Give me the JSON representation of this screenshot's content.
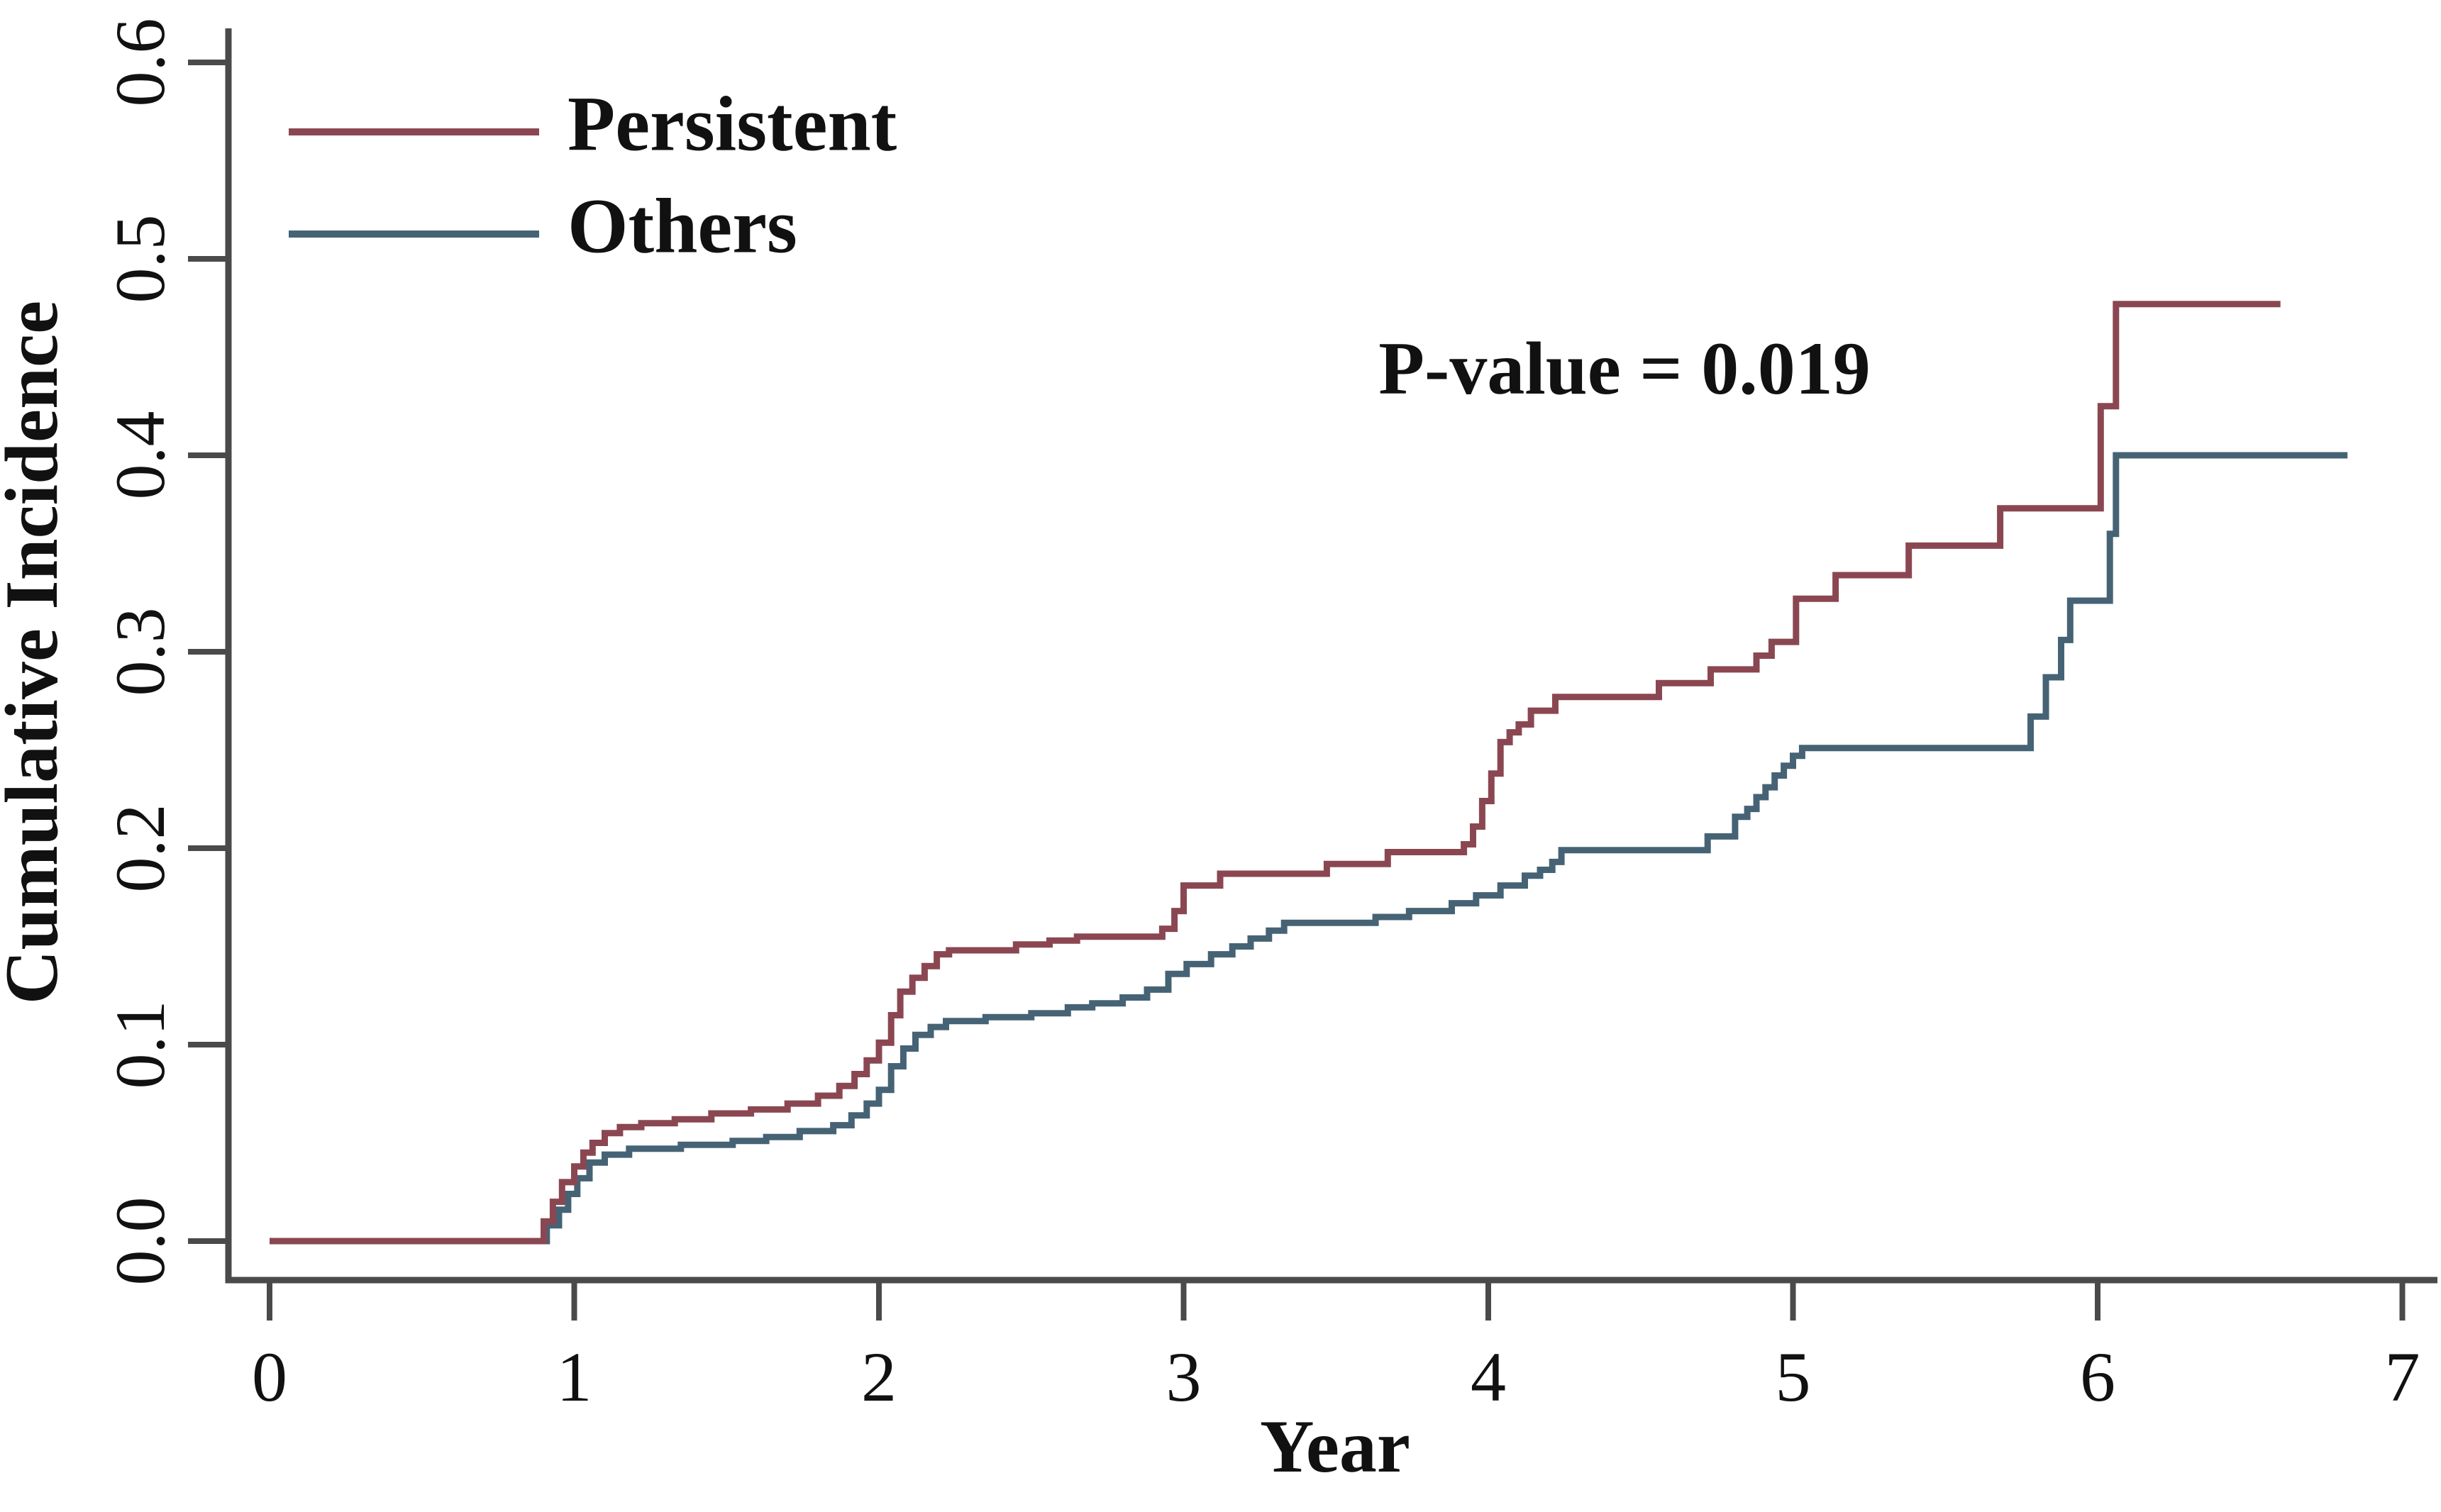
{
  "chart_data": {
    "type": "line",
    "subtype": "step-function cumulative incidence (Kaplan-Meier style)",
    "title": "",
    "xlabel": "Year",
    "ylabel": "Cumulative Incidence",
    "xlim": [
      0,
      7
    ],
    "ylim": [
      0.0,
      0.6
    ],
    "xticks": [
      "0",
      "1",
      "2",
      "3",
      "4",
      "5",
      "6",
      "7"
    ],
    "yticks": [
      "0.0",
      "0.1",
      "0.2",
      "0.3",
      "0.4",
      "0.5",
      "0.6"
    ],
    "grid": false,
    "legend_position": "top-left",
    "annotation": {
      "text": "P-value = 0.019",
      "x": 5.35,
      "y": 0.445
    },
    "axis_color": "#4a4a4a",
    "text_color": "#111111",
    "series": [
      {
        "name": "Others",
        "color": "#466375",
        "end_x": 6.82,
        "steps": [
          [
            0.0,
            0.0
          ],
          [
            0.91,
            0.008
          ],
          [
            0.95,
            0.016
          ],
          [
            0.98,
            0.024
          ],
          [
            1.01,
            0.032
          ],
          [
            1.05,
            0.04
          ],
          [
            1.1,
            0.044
          ],
          [
            1.18,
            0.047
          ],
          [
            1.35,
            0.049
          ],
          [
            1.52,
            0.051
          ],
          [
            1.63,
            0.053
          ],
          [
            1.74,
            0.056
          ],
          [
            1.85,
            0.059
          ],
          [
            1.91,
            0.064
          ],
          [
            1.96,
            0.07
          ],
          [
            2.0,
            0.077
          ],
          [
            2.04,
            0.089
          ],
          [
            2.08,
            0.098
          ],
          [
            2.12,
            0.105
          ],
          [
            2.17,
            0.109
          ],
          [
            2.22,
            0.112
          ],
          [
            2.35,
            0.114
          ],
          [
            2.5,
            0.116
          ],
          [
            2.62,
            0.119
          ],
          [
            2.7,
            0.121
          ],
          [
            2.8,
            0.124
          ],
          [
            2.88,
            0.128
          ],
          [
            2.95,
            0.136
          ],
          [
            3.01,
            0.141
          ],
          [
            3.09,
            0.146
          ],
          [
            3.16,
            0.15
          ],
          [
            3.22,
            0.154
          ],
          [
            3.28,
            0.158
          ],
          [
            3.33,
            0.162
          ],
          [
            3.63,
            0.165
          ],
          [
            3.74,
            0.168
          ],
          [
            3.88,
            0.172
          ],
          [
            3.96,
            0.176
          ],
          [
            4.04,
            0.181
          ],
          [
            4.12,
            0.186
          ],
          [
            4.17,
            0.189
          ],
          [
            4.21,
            0.193
          ],
          [
            4.24,
            0.199
          ],
          [
            4.72,
            0.206
          ],
          [
            4.81,
            0.216
          ],
          [
            4.85,
            0.22
          ],
          [
            4.88,
            0.226
          ],
          [
            4.91,
            0.231
          ],
          [
            4.94,
            0.237
          ],
          [
            4.97,
            0.242
          ],
          [
            5.0,
            0.247
          ],
          [
            5.03,
            0.251
          ],
          [
            5.78,
            0.267
          ],
          [
            5.83,
            0.287
          ],
          [
            5.88,
            0.306
          ],
          [
            5.91,
            0.326
          ],
          [
            6.04,
            0.36
          ],
          [
            6.06,
            0.4
          ]
        ]
      },
      {
        "name": "Persistent",
        "color": "#8a4752",
        "end_x": 6.6,
        "steps": [
          [
            0.0,
            0.0
          ],
          [
            0.9,
            0.01
          ],
          [
            0.93,
            0.02
          ],
          [
            0.96,
            0.03
          ],
          [
            1.0,
            0.038
          ],
          [
            1.03,
            0.045
          ],
          [
            1.06,
            0.05
          ],
          [
            1.1,
            0.055
          ],
          [
            1.15,
            0.058
          ],
          [
            1.22,
            0.06
          ],
          [
            1.33,
            0.062
          ],
          [
            1.45,
            0.065
          ],
          [
            1.58,
            0.067
          ],
          [
            1.7,
            0.07
          ],
          [
            1.8,
            0.074
          ],
          [
            1.87,
            0.079
          ],
          [
            1.92,
            0.085
          ],
          [
            1.96,
            0.092
          ],
          [
            2.0,
            0.101
          ],
          [
            2.04,
            0.115
          ],
          [
            2.07,
            0.127
          ],
          [
            2.11,
            0.134
          ],
          [
            2.15,
            0.14
          ],
          [
            2.19,
            0.146
          ],
          [
            2.23,
            0.148
          ],
          [
            2.45,
            0.151
          ],
          [
            2.56,
            0.153
          ],
          [
            2.65,
            0.155
          ],
          [
            2.93,
            0.159
          ],
          [
            2.97,
            0.168
          ],
          [
            3.0,
            0.181
          ],
          [
            3.12,
            0.187
          ],
          [
            3.47,
            0.192
          ],
          [
            3.67,
            0.198
          ],
          [
            3.92,
            0.202
          ],
          [
            3.95,
            0.211
          ],
          [
            3.98,
            0.224
          ],
          [
            4.01,
            0.238
          ],
          [
            4.04,
            0.254
          ],
          [
            4.07,
            0.259
          ],
          [
            4.1,
            0.263
          ],
          [
            4.14,
            0.27
          ],
          [
            4.22,
            0.277
          ],
          [
            4.56,
            0.284
          ],
          [
            4.73,
            0.291
          ],
          [
            4.88,
            0.298
          ],
          [
            4.93,
            0.305
          ],
          [
            5.01,
            0.327
          ],
          [
            5.14,
            0.339
          ],
          [
            5.38,
            0.354
          ],
          [
            5.68,
            0.373
          ],
          [
            6.01,
            0.425
          ],
          [
            6.06,
            0.477
          ]
        ]
      }
    ],
    "legend": [
      {
        "label": "Persistent",
        "color": "#8a4752"
      },
      {
        "label": "Others",
        "color": "#466375"
      }
    ]
  },
  "layout_note": "single statistical plot on white background"
}
